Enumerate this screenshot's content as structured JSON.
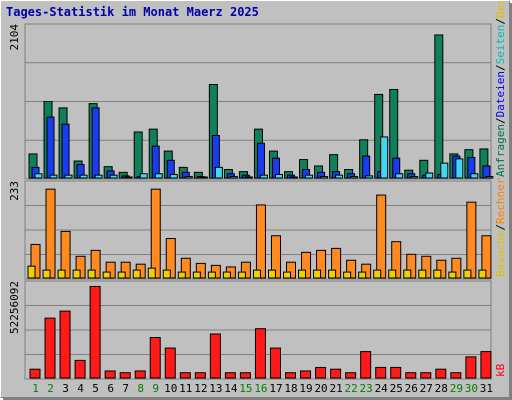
{
  "chart_data": {
    "type": "bar",
    "title": "Tages-Statistik im Monat Maerz 2025",
    "title_color": "#0000aa",
    "background": "#c0c0c0",
    "grid": true,
    "categories": [
      "1",
      "2",
      "3",
      "4",
      "5",
      "6",
      "7",
      "8",
      "9",
      "10",
      "11",
      "12",
      "13",
      "14",
      "15",
      "16",
      "17",
      "18",
      "19",
      "20",
      "21",
      "22",
      "23",
      "24",
      "25",
      "26",
      "27",
      "28",
      "29",
      "30",
      "31"
    ],
    "weekend_days": [
      "1",
      "2",
      "8",
      "9",
      "15",
      "16",
      "22",
      "23",
      "29",
      "30"
    ],
    "weekend_color": "#008000",
    "weekday_color": "#000000",
    "panels": [
      {
        "id": "top",
        "max_label": "2104",
        "max": 2104,
        "right_labels": [
          {
            "text": "Anfragen",
            "color": "#007050"
          },
          {
            "text": "/",
            "color": "#000000"
          },
          {
            "text": "Dateien",
            "color": "#0000ff"
          },
          {
            "text": "/",
            "color": "#000000"
          },
          {
            "text": "Seiten",
            "color": "#00bbbb"
          },
          {
            "text": "/",
            "color": "#000000"
          },
          {
            "text": "Besuche",
            "color": "#e0c000"
          }
        ],
        "series": [
          {
            "name": "Anfragen",
            "color": "#10805a",
            "values": [
              340,
              1080,
              990,
              240,
              1050,
              160,
              80,
              650,
              690,
              380,
              150,
              80,
              1320,
              120,
              90,
              690,
              380,
              90,
              260,
              170,
              330,
              120,
              540,
              1180,
              1250,
              110,
              250,
              2020,
              340,
              400,
              410
            ]
          },
          {
            "name": "Dateien",
            "color": "#1a3cf0",
            "values": [
              150,
              860,
              760,
              190,
              990,
              100,
              30,
              20,
              450,
              250,
              80,
              20,
              600,
              60,
              40,
              490,
              280,
              40,
              120,
              80,
              90,
              60,
              310,
              90,
              280,
              60,
              40,
              50,
              310,
              290,
              170
            ]
          },
          {
            "name": "Seiten",
            "color": "#40d8f0",
            "values": [
              60,
              40,
              40,
              40,
              40,
              40,
              10,
              60,
              60,
              50,
              20,
              10,
              150,
              20,
              10,
              40,
              50,
              10,
              40,
              20,
              40,
              20,
              30,
              580,
              60,
              20,
              70,
              210,
              270,
              60,
              20
            ]
          }
        ]
      },
      {
        "id": "middle",
        "max_label": "233",
        "max": 233,
        "right_labels": [
          {
            "text": "Besuche",
            "color": "#e0c000"
          },
          {
            "text": "/",
            "color": "#000000"
          },
          {
            "text": "Rechner",
            "color": "#ff8000"
          }
        ],
        "series": [
          {
            "name": "Rechner",
            "color": "#ff8a20",
            "values": [
              85,
              225,
              118,
              55,
              70,
              40,
              40,
              35,
              225,
              100,
              50,
              37,
              32,
              28,
              40,
              185,
              107,
              40,
              65,
              70,
              75,
              45,
              35,
              210,
              92,
              60,
              55,
              45,
              50,
              192,
              107
            ]
          },
          {
            "name": "Besuche",
            "color": "#f0d000",
            "values": [
              30,
              20,
              20,
              20,
              20,
              15,
              15,
              20,
              25,
              20,
              15,
              15,
              15,
              15,
              15,
              20,
              20,
              15,
              20,
              20,
              20,
              15,
              15,
              20,
              20,
              20,
              20,
              20,
              15,
              20,
              20
            ]
          }
        ]
      },
      {
        "id": "bottom",
        "max_label": "52256092",
        "max": 52256092,
        "right_labels": [
          {
            "text": "kB",
            "color": "#ff0000"
          }
        ],
        "series": [
          {
            "name": "kB",
            "color": "#ff1a1a",
            "values": [
              5000000,
              34000000,
              38000000,
              10000000,
              52000000,
              4000000,
              3000000,
              4000000,
              23000000,
              17000000,
              3000000,
              3000000,
              25000000,
              3000000,
              3000000,
              28000000,
              17000000,
              3000000,
              4000000,
              6000000,
              5000000,
              3000000,
              15000000,
              6000000,
              6000000,
              3000000,
              3000000,
              5000000,
              3000000,
              12000000,
              15000000
            ]
          }
        ]
      }
    ]
  }
}
